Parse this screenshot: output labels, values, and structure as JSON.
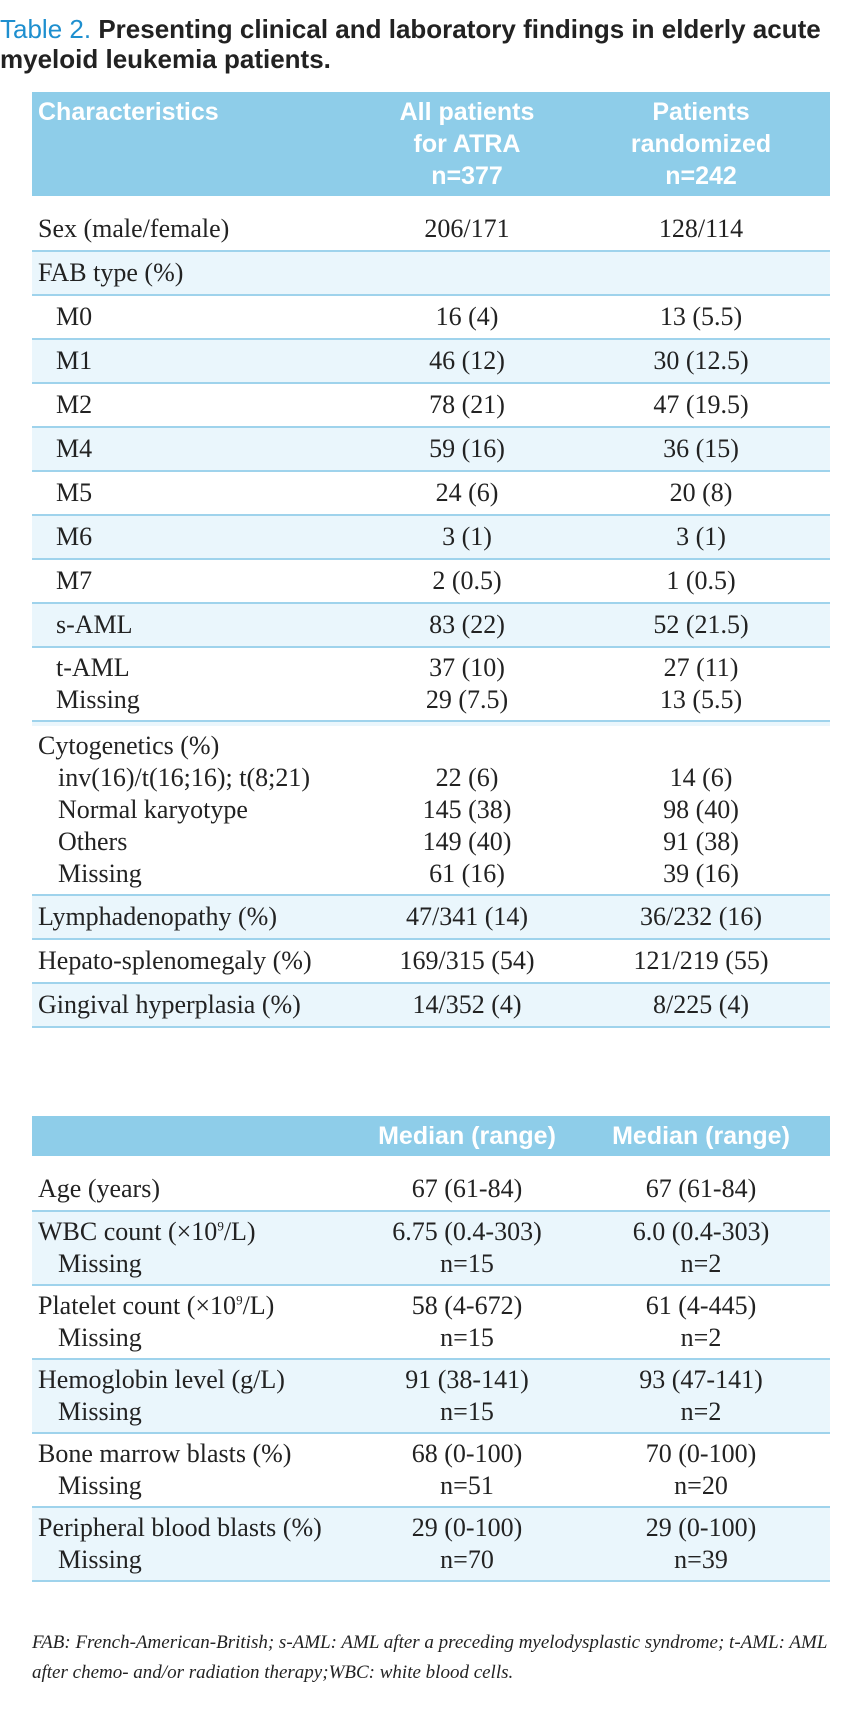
{
  "caption": {
    "label": "Table 2.",
    "text": "Presenting clinical and laboratory findings in elderly acute myeloid leukemia patients."
  },
  "table1": {
    "headers": [
      "Characteristics",
      "All patients\nfor ATRA\nn=377",
      "Patients\nrandomized\nn=242"
    ],
    "sex": [
      "Sex (male/female)",
      "206/171",
      "128/114"
    ],
    "fab_title": "FAB type (%)",
    "fab_rows": [
      [
        "M0",
        "16 (4)",
        "13 (5.5)"
      ],
      [
        "M1",
        "46 (12)",
        "30 (12.5)"
      ],
      [
        "M2",
        "78 (21)",
        "47 (19.5)"
      ],
      [
        "M4",
        "59 (16)",
        "36 (15)"
      ],
      [
        "M5",
        "24 (6)",
        "20 (8)"
      ],
      [
        "M6",
        "3 (1)",
        "3 (1)"
      ],
      [
        "M7",
        "2 (0.5)",
        "1 (0.5)"
      ],
      [
        "s-AML",
        "83 (22)",
        "52 (21.5)"
      ]
    ],
    "tam": {
      "labels": [
        "t-AML",
        "Missing"
      ],
      "all": [
        "37 (10)",
        "29 (7.5)"
      ],
      "rand": [
        "27 (11)",
        "13 (5.5)"
      ]
    },
    "cyto": {
      "title": "Cytogenetics (%)",
      "labels": [
        "inv(16)/t(16;16); t(8;21)",
        "Normal karyotype",
        "Others",
        "Missing"
      ],
      "all": [
        "22 (6)",
        "145 (38)",
        "149 (40)",
        "61 (16)"
      ],
      "rand": [
        "14 (6)",
        "98 (40)",
        "91 (38)",
        "39 (16)"
      ]
    },
    "tail_rows": [
      [
        "Lymphadenopathy (%)",
        "47/341 (14)",
        "36/232 (16)"
      ],
      [
        "Hepato-splenomegaly (%)",
        "169/315 (54)",
        "121/219 (55)"
      ],
      [
        "Gingival hyperplasia (%)",
        "14/352 (4)",
        "8/225 (4)"
      ]
    ]
  },
  "table2": {
    "headers": [
      "",
      "Median (range)",
      "Median (range)"
    ],
    "age": [
      "Age (years)",
      "67 (61-84)",
      "67 (61-84)"
    ],
    "groups": [
      {
        "label": "WBC count (×10",
        "sup": "9",
        "tail": "/L)",
        "sub": "Missing",
        "all": [
          "6.75 (0.4-303)",
          "n=15"
        ],
        "rand": [
          "6.0 (0.4-303)",
          "n=2"
        ]
      },
      {
        "label": "Platelet count (×10",
        "sup": "9",
        "tail": "/L)",
        "sub": "Missing",
        "all": [
          "58 (4-672)",
          "n=15"
        ],
        "rand": [
          "61 (4-445)",
          "n=2"
        ]
      },
      {
        "label": "Hemoglobin level (g/L)",
        "sup": "",
        "tail": "",
        "sub": "Missing",
        "all": [
          "91 (38-141)",
          "n=15"
        ],
        "rand": [
          "93 (47-141)",
          "n=2"
        ]
      },
      {
        "label": "Bone marrow blasts (%)",
        "sup": "",
        "tail": "",
        "sub": "Missing",
        "all": [
          "68 (0-100)",
          "n=51"
        ],
        "rand": [
          "70 (0-100)",
          "n=20"
        ]
      },
      {
        "label": "Peripheral blood blasts (%)",
        "sup": "",
        "tail": "",
        "sub": "Missing",
        "all": [
          "29 (0-100)",
          "n=70"
        ],
        "rand": [
          "29 (0-100)",
          "n=39"
        ]
      }
    ]
  },
  "footnote": "FAB: French-American-British; s-AML: AML after a preceding myelodysplastic syndrome; t-AML: AML after chemo- and/or radiation therapy;WBC: white blood cells."
}
